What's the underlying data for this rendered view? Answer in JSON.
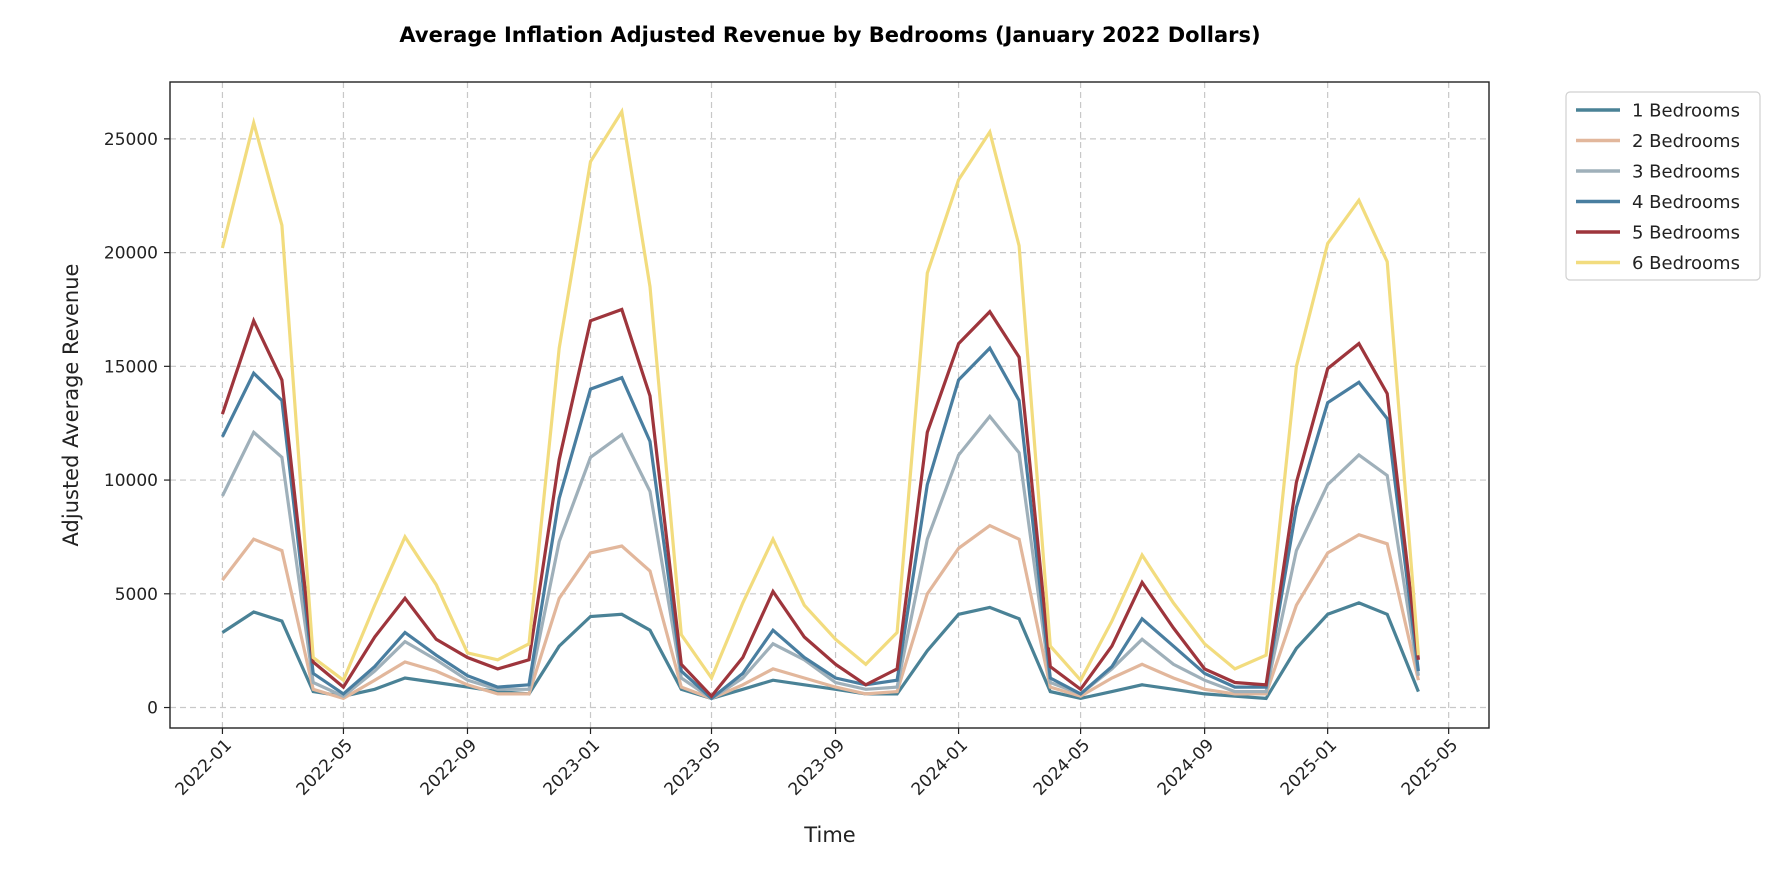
{
  "chart_data": {
    "type": "line",
    "title": "Average Inflation Adjusted Revenue by Bedrooms (January 2022 Dollars)",
    "xlabel": "Time",
    "ylabel": "Adjusted Average Revenue",
    "ylim": [
      -900,
      27500
    ],
    "xlim": [
      "2021-11-10",
      "2025-06-10"
    ],
    "grid": true,
    "legend_position": "outside-top-right",
    "y_ticks": [
      0,
      5000,
      10000,
      15000,
      20000,
      25000
    ],
    "y_tick_labels": [
      "0",
      "5000",
      "10000",
      "15000",
      "20000",
      "25000"
    ],
    "x_ticks": [
      "2022-01",
      "2022-05",
      "2022-09",
      "2023-01",
      "2023-05",
      "2023-09",
      "2024-01",
      "2024-05",
      "2024-09",
      "2025-01",
      "2025-05"
    ],
    "x": [
      "2022-01",
      "2022-02",
      "2022-03",
      "2022-04",
      "2022-05",
      "2022-06",
      "2022-07",
      "2022-08",
      "2022-09",
      "2022-10",
      "2022-11",
      "2022-12",
      "2023-01",
      "2023-02",
      "2023-03",
      "2023-04",
      "2023-05",
      "2023-06",
      "2023-07",
      "2023-08",
      "2023-09",
      "2023-10",
      "2023-11",
      "2023-12",
      "2024-01",
      "2024-02",
      "2024-03",
      "2024-04",
      "2024-05",
      "2024-06",
      "2024-07",
      "2024-08",
      "2024-09",
      "2024-10",
      "2024-11",
      "2024-12",
      "2025-01",
      "2025-02",
      "2025-03",
      "2025-04"
    ],
    "series": [
      {
        "name": "1 Bedrooms",
        "color": "#4a8296",
        "values": [
          3300,
          4200,
          3800,
          700,
          500,
          800,
          1300,
          1100,
          900,
          700,
          600,
          2700,
          4000,
          4100,
          3400,
          800,
          400,
          800,
          1200,
          1000,
          800,
          600,
          600,
          2500,
          4100,
          4400,
          3900,
          700,
          400,
          700,
          1000,
          800,
          600,
          500,
          400,
          2600,
          4100,
          4600,
          4100,
          700
        ]
      },
      {
        "name": "2 Bedrooms",
        "color": "#e2b79c",
        "values": [
          5600,
          7400,
          6900,
          800,
          400,
          1200,
          2000,
          1600,
          1000,
          600,
          600,
          4800,
          6800,
          7100,
          6000,
          900,
          400,
          1000,
          1700,
          1300,
          900,
          600,
          700,
          5000,
          7000,
          8000,
          7400,
          900,
          500,
          1300,
          1900,
          1300,
          800,
          600,
          600,
          4500,
          6800,
          7600,
          7200,
          1200
        ]
      },
      {
        "name": "3 Bedrooms",
        "color": "#9fb0ba",
        "values": [
          9300,
          12100,
          11000,
          1100,
          500,
          1600,
          2900,
          2100,
          1200,
          800,
          800,
          7300,
          11000,
          12000,
          9500,
          1300,
          400,
          1300,
          2800,
          2100,
          1100,
          800,
          900,
          7400,
          11100,
          12800,
          11200,
          1100,
          600,
          1700,
          3000,
          1900,
          1200,
          700,
          700,
          6900,
          9800,
          11100,
          10200,
          1400
        ]
      },
      {
        "name": "4 Bedrooms",
        "color": "#497ea0",
        "values": [
          11900,
          14700,
          13500,
          1500,
          600,
          1800,
          3300,
          2300,
          1400,
          900,
          1000,
          9200,
          14000,
          14500,
          11700,
          1600,
          400,
          1500,
          3400,
          2200,
          1300,
          1000,
          1200,
          9800,
          14400,
          15800,
          13500,
          1300,
          600,
          1800,
          3900,
          2700,
          1500,
          900,
          900,
          8800,
          13400,
          14300,
          12700,
          1600
        ]
      },
      {
        "name": "5 Bedrooms",
        "color": "#9e353c",
        "values": [
          12900,
          17000,
          14400,
          2000,
          900,
          3100,
          4800,
          3000,
          2200,
          1700,
          2100,
          10900,
          17000,
          17500,
          13700,
          1900,
          500,
          2200,
          5100,
          3100,
          1900,
          1000,
          1700,
          12100,
          16000,
          17400,
          15400,
          1800,
          800,
          2700,
          5500,
          3500,
          1700,
          1100,
          1000,
          9900,
          14900,
          16000,
          13800,
          2100
        ]
      },
      {
        "name": "6 Bedrooms",
        "color": "#f2dc7e",
        "values": [
          20200,
          25700,
          21200,
          2200,
          1200,
          4500,
          7500,
          5400,
          2400,
          2100,
          2800,
          15800,
          24000,
          26200,
          18500,
          3200,
          1300,
          4600,
          7400,
          4500,
          3000,
          1900,
          3300,
          19100,
          23200,
          25300,
          20300,
          2700,
          1200,
          3800,
          6700,
          4600,
          2800,
          1700,
          2300,
          15000,
          20400,
          22300,
          19600,
          2300
        ]
      }
    ]
  }
}
